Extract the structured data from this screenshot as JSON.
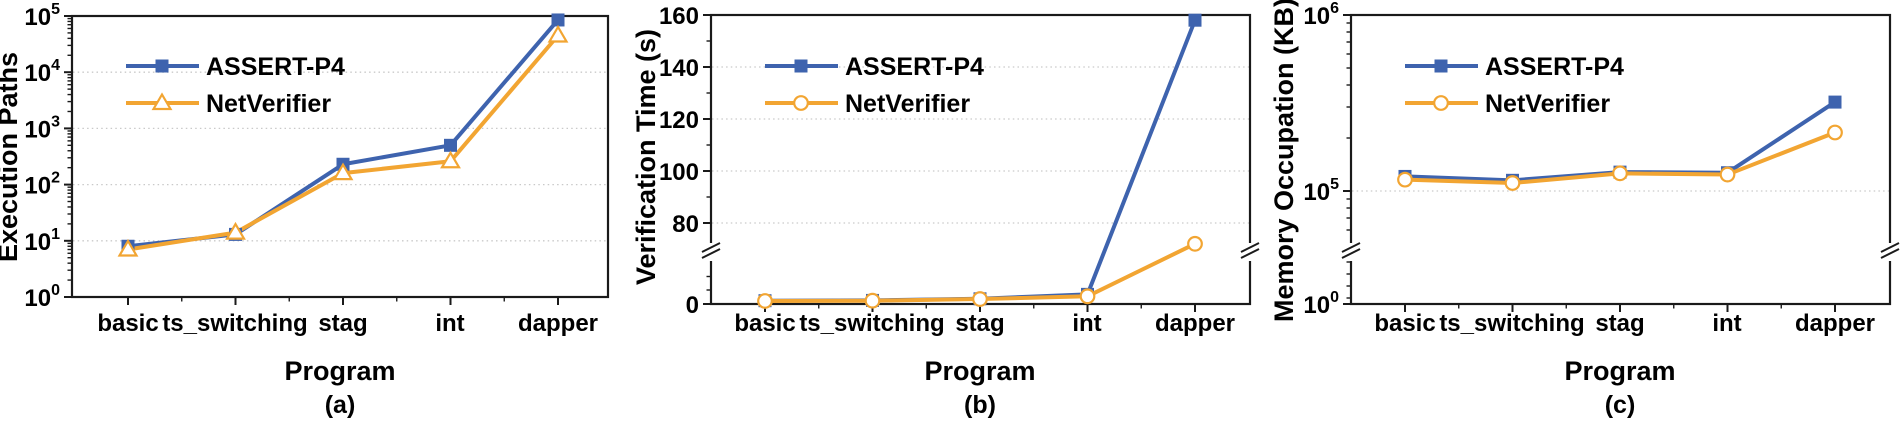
{
  "colors": {
    "assert_p4": "#3E63AE",
    "netverifier": "#F2A532",
    "grid": "#C9C9C9",
    "axis": "#1A1A1A",
    "text": "#000000",
    "marker_fill": "#FFFFFF"
  },
  "categories": [
    "basic",
    "ts_switching",
    "stag",
    "int",
    "dapper"
  ],
  "chart_data": [
    {
      "type": "line",
      "caption": "(a)",
      "ylabel": "Execution Paths",
      "xlabel": "Program",
      "y_axis": {
        "scale": "log10",
        "break": false,
        "ylim": [
          1,
          100000
        ],
        "ticks": [
          "10^0",
          "10^1",
          "10^2",
          "10^3",
          "10^4",
          "10^5"
        ]
      },
      "grid": true,
      "legend_position": "upper-left",
      "series": [
        {
          "name": "ASSERT-P4",
          "marker": "square",
          "color": "#3E63AE",
          "values": [
            8,
            13,
            230,
            500,
            85000
          ]
        },
        {
          "name": "NetVerifier",
          "marker": "triangle",
          "color": "#F2A532",
          "values": [
            7,
            14,
            160,
            260,
            45000
          ]
        }
      ]
    },
    {
      "type": "line",
      "caption": "(b)",
      "ylabel": "Verification Time (s)",
      "xlabel": "Program",
      "y_axis": {
        "scale": "linear",
        "break": true,
        "ylim": [
          0,
          160
        ],
        "ticks": [
          "0",
          "80",
          "100",
          "120",
          "140",
          "160"
        ]
      },
      "grid": true,
      "legend_position": "upper-left",
      "series": [
        {
          "name": "ASSERT-P4",
          "marker": "square",
          "color": "#3E63AE",
          "values": [
            1.2,
            1.3,
            1.9,
            3.5,
            158
          ]
        },
        {
          "name": "NetVerifier",
          "marker": "circle",
          "color": "#F2A532",
          "values": [
            1.1,
            1.2,
            1.8,
            2.8,
            72
          ]
        }
      ]
    },
    {
      "type": "line",
      "caption": "(c)",
      "ylabel": "Memory Occupation (KB)",
      "xlabel": "Program",
      "y_axis": {
        "scale": "log10",
        "break": true,
        "ylim": [
          1,
          1000000
        ],
        "ticks": [
          "10^0",
          "10^5",
          "10^6"
        ]
      },
      "grid": true,
      "legend_position": "upper-left",
      "series": [
        {
          "name": "ASSERT-P4",
          "marker": "square",
          "color": "#3E63AE",
          "values": [
            121000,
            115000,
            128000,
            127000,
            320000
          ]
        },
        {
          "name": "NetVerifier",
          "marker": "circle",
          "color": "#F2A532",
          "values": [
            116000,
            111000,
            126000,
            124000,
            215000
          ]
        }
      ]
    }
  ]
}
